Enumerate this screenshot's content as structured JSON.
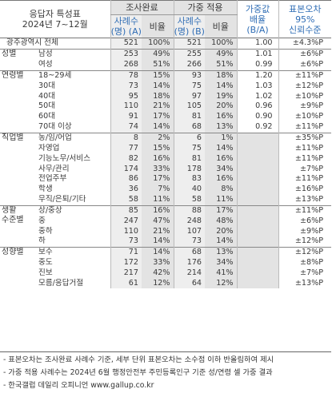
{
  "header": {
    "group_title_line1": "응답자 특성표",
    "group_title_line2": "2024년 7~12월",
    "survey_complete": "조사완료",
    "weighted": "가중 적용",
    "weight_ratio_line1": "가중값",
    "weight_ratio_line2": "배율",
    "weight_ratio_line3": "(B/A)",
    "moe_line1": "표본오차",
    "moe_line2": "95%",
    "moe_line3": "신뢰수준",
    "cases_a_line1": "사례수",
    "cases_a_line2": "(명) (A)",
    "ratio_a": "비율",
    "cases_b_line1": "사례수",
    "cases_b_line2": "(명) (B)",
    "ratio_b": "비율"
  },
  "groups": [
    {
      "label": "광주광역시 전체",
      "rows": [
        {
          "sub": "",
          "n_a": "521",
          "p_a": "100%",
          "n_b": "521",
          "p_b": "100%",
          "w": "1.00",
          "moe": "±4.3%P"
        }
      ]
    },
    {
      "label": "성별",
      "rows": [
        {
          "sub": "남성",
          "n_a": "253",
          "p_a": "49%",
          "n_b": "255",
          "p_b": "49%",
          "w": "1.01",
          "moe": "±6%P"
        },
        {
          "sub": "여성",
          "n_a": "268",
          "p_a": "51%",
          "n_b": "266",
          "p_b": "51%",
          "w": "0.99",
          "moe": "±6%P"
        }
      ]
    },
    {
      "label": "연령별",
      "rows": [
        {
          "sub": "18~29세",
          "n_a": "78",
          "p_a": "15%",
          "n_b": "93",
          "p_b": "18%",
          "w": "1.20",
          "moe": "±11%P"
        },
        {
          "sub": "30대",
          "n_a": "73",
          "p_a": "14%",
          "n_b": "75",
          "p_b": "14%",
          "w": "1.03",
          "moe": "±12%P"
        },
        {
          "sub": "40대",
          "n_a": "95",
          "p_a": "18%",
          "n_b": "97",
          "p_b": "19%",
          "w": "1.02",
          "moe": "±10%P"
        },
        {
          "sub": "50대",
          "n_a": "110",
          "p_a": "21%",
          "n_b": "105",
          "p_b": "20%",
          "w": "0.96",
          "moe": "±9%P"
        },
        {
          "sub": "60대",
          "n_a": "91",
          "p_a": "17%",
          "n_b": "81",
          "p_b": "16%",
          "w": "0.90",
          "moe": "±10%P"
        },
        {
          "sub": "70대 이상",
          "n_a": "74",
          "p_a": "14%",
          "n_b": "68",
          "p_b": "13%",
          "w": "0.92",
          "moe": "±11%P"
        }
      ]
    },
    {
      "label": "직업별",
      "rows": [
        {
          "sub": "농/임/어업",
          "n_a": "8",
          "p_a": "2%",
          "n_b": "6",
          "p_b": "1%",
          "w": "",
          "moe": "±35%P"
        },
        {
          "sub": "자영업",
          "n_a": "77",
          "p_a": "15%",
          "n_b": "75",
          "p_b": "14%",
          "w": "",
          "moe": "±11%P"
        },
        {
          "sub": "기능노무/서비스",
          "n_a": "82",
          "p_a": "16%",
          "n_b": "81",
          "p_b": "16%",
          "w": "",
          "moe": "±11%P"
        },
        {
          "sub": "사무/관리",
          "n_a": "174",
          "p_a": "33%",
          "n_b": "178",
          "p_b": "34%",
          "w": "",
          "moe": "±7%P"
        },
        {
          "sub": "전업주부",
          "n_a": "86",
          "p_a": "17%",
          "n_b": "83",
          "p_b": "16%",
          "w": "",
          "moe": "±11%P"
        },
        {
          "sub": "학생",
          "n_a": "36",
          "p_a": "7%",
          "n_b": "40",
          "p_b": "8%",
          "w": "",
          "moe": "±16%P"
        },
        {
          "sub": "무직/은퇴/기타",
          "n_a": "58",
          "p_a": "11%",
          "n_b": "58",
          "p_b": "11%",
          "w": "",
          "moe": "±13%P"
        }
      ]
    },
    {
      "label_line1": "생활",
      "label_line2": "수준별",
      "rows": [
        {
          "sub": "상/중상",
          "n_a": "85",
          "p_a": "16%",
          "n_b": "88",
          "p_b": "17%",
          "w": "",
          "moe": "±11%P"
        },
        {
          "sub": "중",
          "n_a": "247",
          "p_a": "47%",
          "n_b": "248",
          "p_b": "48%",
          "w": "",
          "moe": "±6%P"
        },
        {
          "sub": "중하",
          "n_a": "110",
          "p_a": "21%",
          "n_b": "107",
          "p_b": "20%",
          "w": "",
          "moe": "±9%P"
        },
        {
          "sub": "하",
          "n_a": "73",
          "p_a": "14%",
          "n_b": "73",
          "p_b": "14%",
          "w": "",
          "moe": "±12%P"
        }
      ]
    },
    {
      "label": "성향별",
      "rows": [
        {
          "sub": "보수",
          "n_a": "71",
          "p_a": "14%",
          "n_b": "68",
          "p_b": "13%",
          "w": "",
          "moe": "±12%P"
        },
        {
          "sub": "중도",
          "n_a": "172",
          "p_a": "33%",
          "n_b": "176",
          "p_b": "34%",
          "w": "",
          "moe": "±8%P"
        },
        {
          "sub": "진보",
          "n_a": "217",
          "p_a": "42%",
          "n_b": "214",
          "p_b": "41%",
          "w": "",
          "moe": "±7%P"
        },
        {
          "sub": "모름/응답거절",
          "n_a": "61",
          "p_a": "12%",
          "n_b": "64",
          "p_b": "12%",
          "w": "",
          "moe": "±13%P"
        }
      ]
    }
  ],
  "footnotes": [
    "- 표본오차는 조사완료 사례수 기준, 세부 단위 표본오차는 소수점 이하 반올림하여 제시",
    "- 가중 적용 사례수는 2024년 6월 행정안전부 주민등록인구 기준 성/연령 셀 가중 결과",
    "- 한국갤럽 데일리 오피니언 www.gallup.co.kr"
  ],
  "colors": {
    "accent": "#2f6db5",
    "shade": "#e3e3e3"
  }
}
